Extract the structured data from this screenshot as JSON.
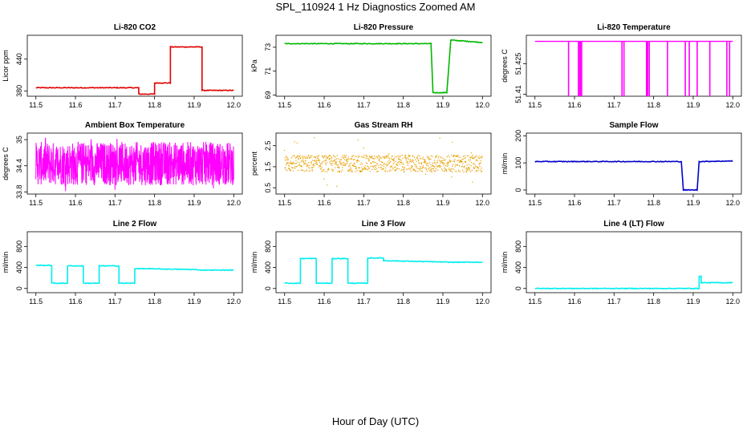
{
  "title": "SPL_110924  1 Hz Diagnostics Zoomed AM",
  "xlabel": "Hour of Day (UTC)",
  "chart_data": [
    {
      "type": "line",
      "title": "Li-820 CO2",
      "ylabel": "Licor ppm",
      "color": "#e00000",
      "xlim": [
        11.5,
        12.0
      ],
      "ylim": [
        370,
        485
      ],
      "xticks": [
        "11.5",
        "11.6",
        "11.7",
        "11.8",
        "11.9",
        "12.0"
      ],
      "yticks": [
        380,
        440
      ],
      "series": [
        {
          "x": [
            11.5,
            11.76,
            11.76,
            11.8,
            11.8,
            11.84,
            11.84,
            11.92,
            11.92,
            12.0
          ],
          "y": [
            386,
            386,
            374,
            374,
            395,
            395,
            463,
            463,
            381,
            381
          ]
        }
      ]
    },
    {
      "type": "line",
      "title": "Li-820 Pressure",
      "ylabel": "kPa",
      "color": "#00b800",
      "xlim": [
        11.5,
        12.0
      ],
      "ylim": [
        68.9,
        74.0
      ],
      "xticks": [
        "11.5",
        "11.6",
        "11.7",
        "11.8",
        "11.9",
        "12.0"
      ],
      "yticks": [
        69,
        71,
        73
      ],
      "series": [
        {
          "x": [
            11.5,
            11.87,
            11.875,
            11.91,
            11.92,
            12.0
          ],
          "y": [
            73.3,
            73.3,
            69.2,
            69.2,
            73.6,
            73.4
          ]
        }
      ]
    },
    {
      "type": "line",
      "title": "Li-820 Temperature",
      "ylabel": "degrees C",
      "color": "#ff00ff",
      "xlim": [
        11.5,
        12.0
      ],
      "ylim": [
        51.409,
        51.439
      ],
      "xticks": [
        "11.5",
        "11.6",
        "11.7",
        "11.8",
        "11.9",
        "12.0"
      ],
      "yticks": [
        51.41,
        51.425
      ],
      "baseline": 51.436,
      "spikes": [
        11.585,
        11.61,
        11.612,
        11.615,
        11.618,
        11.72,
        11.725,
        11.782,
        11.785,
        11.789,
        11.835,
        11.88,
        11.89,
        11.91,
        11.942,
        11.985,
        11.992
      ],
      "spike_min": 51.409
    },
    {
      "type": "line",
      "title": "Ambient Box Temperature",
      "ylabel": "degrees C",
      "color": "#ff00ff",
      "xlim": [
        11.5,
        12.0
      ],
      "ylim": [
        33.75,
        35.15
      ],
      "xticks": [
        "11.5",
        "11.6",
        "11.7",
        "11.8",
        "11.9",
        "12.0"
      ],
      "yticks": [
        33.8,
        34.4,
        35.0
      ],
      "noise": {
        "center": 34.4,
        "low": 33.95,
        "high": 34.95,
        "spread_low": 33.8,
        "spread_high": 35.1
      }
    },
    {
      "type": "scatter",
      "title": "Gas Stream RH",
      "ylabel": "percent",
      "color": "#e8a000",
      "xlim": [
        11.5,
        12.0
      ],
      "ylim": [
        0.2,
        3.1
      ],
      "xticks": [
        "11.5",
        "11.6",
        "11.7",
        "11.8",
        "11.9",
        "12.0"
      ],
      "yticks": [
        0.5,
        1.5,
        2.5
      ],
      "noise": {
        "center": 1.65,
        "low": 1.25,
        "high": 2.05,
        "spread_low": 0.3,
        "spread_high": 3.0
      }
    },
    {
      "type": "line",
      "title": "Sample Flow",
      "ylabel": "ml/min",
      "color": "#0000cc",
      "xlim": [
        11.5,
        12.0
      ],
      "ylim": [
        -15,
        210
      ],
      "xticks": [
        "11.5",
        "11.6",
        "11.7",
        "11.8",
        "11.9",
        "12.0"
      ],
      "yticks": [
        0,
        100,
        200
      ],
      "series": [
        {
          "x": [
            11.5,
            11.87,
            11.875,
            11.91,
            11.915,
            12.0
          ],
          "y": [
            105,
            105,
            0,
            0,
            105,
            107
          ]
        }
      ]
    },
    {
      "type": "line",
      "title": "Line 2 Flow",
      "ylabel": "ml/min",
      "color": "#00eeee",
      "xlim": [
        11.5,
        12.0
      ],
      "ylim": [
        -80,
        1080
      ],
      "xticks": [
        "11.5",
        "11.6",
        "11.7",
        "11.8",
        "11.9",
        "12.0"
      ],
      "yticks": [
        0,
        400,
        800
      ],
      "series": [
        {
          "x": [
            11.5,
            11.54,
            11.54,
            11.58,
            11.58,
            11.62,
            11.62,
            11.66,
            11.66,
            11.71,
            11.71,
            11.75,
            11.75,
            11.9,
            11.92,
            12.0
          ],
          "y": [
            440,
            440,
            100,
            100,
            430,
            430,
            100,
            100,
            430,
            430,
            100,
            100,
            380,
            360,
            350,
            350
          ]
        }
      ]
    },
    {
      "type": "line",
      "title": "Line 3 Flow",
      "ylabel": "ml/min",
      "color": "#00eeee",
      "xlim": [
        11.5,
        12.0
      ],
      "ylim": [
        -80,
        1080
      ],
      "xticks": [
        "11.5",
        "11.6",
        "11.7",
        "11.8",
        "11.9",
        "12.0"
      ],
      "yticks": [
        0,
        400,
        800
      ],
      "series": [
        {
          "x": [
            11.5,
            11.54,
            11.54,
            11.58,
            11.58,
            11.62,
            11.62,
            11.66,
            11.66,
            11.71,
            11.71,
            11.75,
            11.75,
            11.92,
            12.0
          ],
          "y": [
            100,
            100,
            570,
            570,
            100,
            100,
            570,
            570,
            100,
            100,
            580,
            580,
            530,
            500,
            500
          ]
        }
      ]
    },
    {
      "type": "line",
      "title": "Line 4 (LT) Flow",
      "ylabel": "ml/min",
      "color": "#00eeee",
      "xlim": [
        11.5,
        12.0
      ],
      "ylim": [
        -80,
        1080
      ],
      "xticks": [
        "11.5",
        "11.6",
        "11.7",
        "11.8",
        "11.9",
        "12.0"
      ],
      "yticks": [
        0,
        400,
        800
      ],
      "series": [
        {
          "x": [
            11.5,
            11.915,
            11.915,
            11.92,
            11.92,
            12.0
          ],
          "y": [
            0,
            0,
            230,
            230,
            110,
            110
          ]
        }
      ]
    }
  ]
}
